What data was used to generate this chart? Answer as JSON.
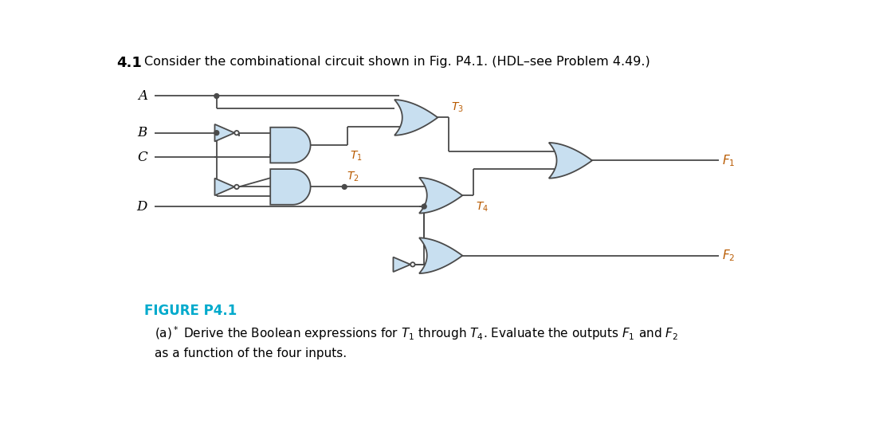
{
  "title_number": "4.1",
  "title_text": "Consider the combinational circuit shown in Fig. P4.1. (HDL–see Problem 4.49.)",
  "figure_label": "FIGURE P4.1",
  "gate_fill": "#c8dff0",
  "gate_edge": "#4a4a4a",
  "line_color": "#4a4a4a",
  "bg_color": "#ffffff",
  "label_color": "#00aacc",
  "node_label_color": "#b85a00"
}
